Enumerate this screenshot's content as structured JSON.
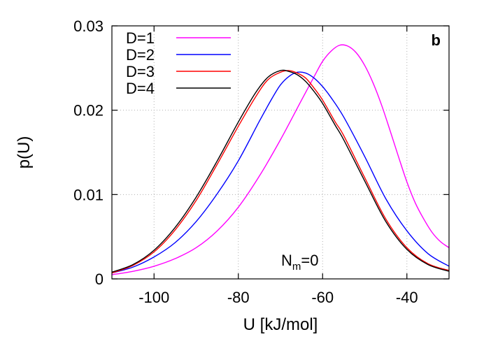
{
  "chart_data": {
    "type": "line",
    "xlabel": "U [kJ/mol]",
    "ylabel": "p(U)",
    "xlim": [
      -110,
      -30
    ],
    "ylim": [
      0,
      0.03
    ],
    "xticks": [
      -100,
      -80,
      -60,
      -40
    ],
    "xtick_labels": [
      "-100",
      "-80",
      "-60",
      "-40"
    ],
    "yticks": [
      0,
      0.01,
      0.02,
      0.03
    ],
    "ytick_labels": [
      "0",
      "0.01",
      "0.02",
      "0.03"
    ],
    "grid": true,
    "legend_position": "top-left",
    "panel_label": "b",
    "annotation": {
      "base": "N",
      "subscript": "m",
      "suffix": "=0"
    },
    "series": [
      {
        "name": "D=1",
        "color": "#ff00ff",
        "x": [
          -110,
          -105,
          -100,
          -95,
          -90,
          -85,
          -80,
          -75,
          -70,
          -65,
          -62,
          -60,
          -58,
          -56,
          -54,
          -52,
          -50,
          -48,
          -46,
          -44,
          -42,
          -40,
          -38,
          -36,
          -34,
          -32,
          -30
        ],
        "y": [
          0.0005,
          0.0009,
          0.0015,
          0.0024,
          0.0037,
          0.0057,
          0.0085,
          0.0122,
          0.0165,
          0.0212,
          0.024,
          0.0258,
          0.027,
          0.0277,
          0.0276,
          0.0268,
          0.0253,
          0.0232,
          0.0206,
          0.0176,
          0.0145,
          0.0115,
          0.009,
          0.0071,
          0.0055,
          0.0044,
          0.0037
        ]
      },
      {
        "name": "D=2",
        "color": "#0000ff",
        "x": [
          -110,
          -105,
          -100,
          -95,
          -90,
          -85,
          -80,
          -75,
          -72,
          -70,
          -68,
          -66,
          -64,
          -62,
          -60,
          -58,
          -55,
          -50,
          -45,
          -40,
          -35,
          -30
        ],
        "y": [
          0.0007,
          0.0014,
          0.0026,
          0.0043,
          0.0068,
          0.0101,
          0.014,
          0.0187,
          0.0214,
          0.023,
          0.024,
          0.0245,
          0.0244,
          0.0238,
          0.0228,
          0.0215,
          0.0192,
          0.0145,
          0.0095,
          0.0057,
          0.003,
          0.0015
        ]
      },
      {
        "name": "D=3",
        "color": "#ff0000",
        "x": [
          -110,
          -105,
          -100,
          -95,
          -90,
          -85,
          -80,
          -76,
          -73,
          -70,
          -68,
          -66,
          -64,
          -62,
          -60,
          -57,
          -55,
          -50,
          -45,
          -40,
          -35,
          -30
        ],
        "y": [
          0.0007,
          0.0016,
          0.0032,
          0.0058,
          0.0093,
          0.0136,
          0.0181,
          0.0215,
          0.0236,
          0.0245,
          0.0247,
          0.0244,
          0.0238,
          0.0226,
          0.0212,
          0.0186,
          0.017,
          0.012,
          0.0071,
          0.0037,
          0.0018,
          0.001
        ]
      },
      {
        "name": "D=4",
        "color": "#000000",
        "x": [
          -110,
          -105,
          -100,
          -95,
          -90,
          -85,
          -80,
          -76,
          -73,
          -70,
          -68,
          -66,
          -64,
          -62,
          -60,
          -57,
          -55,
          -50,
          -45,
          -40,
          -35,
          -30
        ],
        "y": [
          0.0008,
          0.0017,
          0.0034,
          0.0061,
          0.0097,
          0.014,
          0.0186,
          0.022,
          0.0239,
          0.0247,
          0.0246,
          0.0242,
          0.0234,
          0.0222,
          0.0208,
          0.0182,
          0.0165,
          0.0116,
          0.0068,
          0.0035,
          0.0017,
          0.0009
        ]
      }
    ]
  }
}
